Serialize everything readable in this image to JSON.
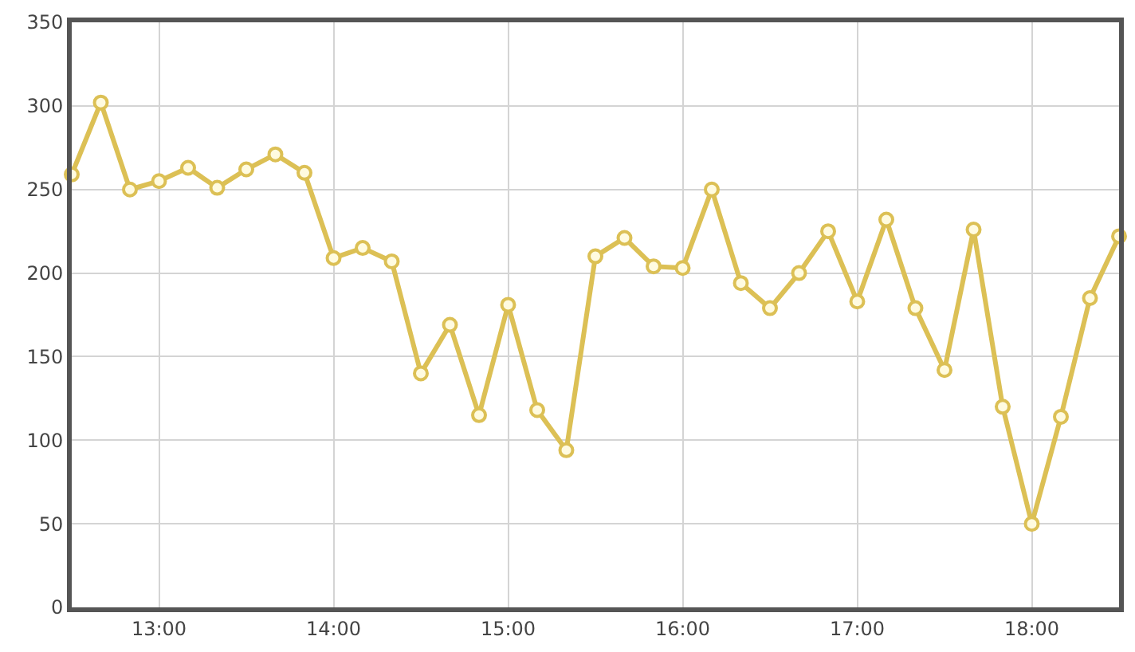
{
  "chart_data": {
    "type": "line",
    "x": [
      12.5,
      12.6667,
      12.8333,
      13,
      13.1667,
      13.3333,
      13.5,
      13.6667,
      13.8333,
      14,
      14.1667,
      14.3333,
      14.5,
      14.6667,
      14.8333,
      15,
      15.1667,
      15.3333,
      15.5,
      15.6667,
      15.8333,
      16,
      16.1667,
      16.3333,
      16.5,
      16.6667,
      16.8333,
      17,
      17.1667,
      17.3333,
      17.5,
      17.6667,
      17.8333,
      18,
      18.1667,
      18.3333,
      18.5
    ],
    "series": [
      {
        "color": "#dcc055",
        "values": [
          259,
          302,
          250,
          255,
          263,
          251,
          262,
          271,
          260,
          209,
          215,
          207,
          140,
          169,
          115,
          181,
          118,
          94,
          210,
          221,
          204,
          203,
          250,
          194,
          179,
          200,
          225,
          183,
          232,
          179,
          142,
          226,
          120,
          50,
          114,
          185,
          222
        ]
      }
    ],
    "xlim": [
      12.5,
      18.5
    ],
    "xticks": [
      {
        "value": 13,
        "label": "13:00"
      },
      {
        "value": 14,
        "label": "14:00"
      },
      {
        "value": 15,
        "label": "15:00"
      },
      {
        "value": 16,
        "label": "16:00"
      },
      {
        "value": 17,
        "label": "17:00"
      },
      {
        "value": 18,
        "label": "18:00"
      }
    ],
    "ylim": [
      0,
      350
    ],
    "yticks": [
      0,
      50,
      100,
      150,
      200,
      250,
      300,
      350
    ],
    "grid": true,
    "marker": "circle",
    "line_style": "solid"
  }
}
